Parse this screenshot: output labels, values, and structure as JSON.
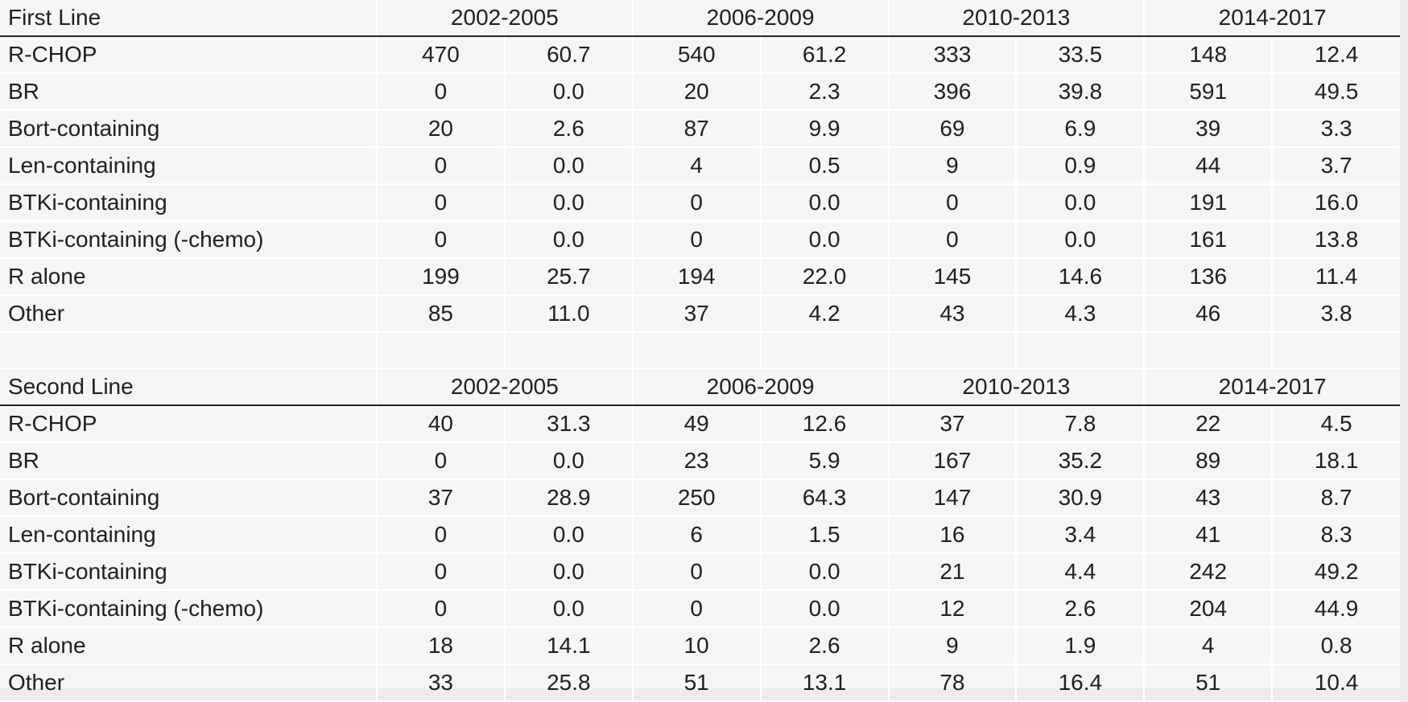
{
  "sections": [
    {
      "title": "First Line",
      "periods": [
        "2002-2005",
        "2006-2009",
        "2010-2013",
        "2014-2017"
      ],
      "rows": [
        {
          "label": "R-CHOP",
          "values": [
            "470",
            "60.7",
            "540",
            "61.2",
            "333",
            "33.5",
            "148",
            "12.4"
          ]
        },
        {
          "label": "BR",
          "values": [
            "0",
            "0.0",
            "20",
            "2.3",
            "396",
            "39.8",
            "591",
            "49.5"
          ]
        },
        {
          "label": "Bort-containing",
          "values": [
            "20",
            "2.6",
            "87",
            "9.9",
            "69",
            "6.9",
            "39",
            "3.3"
          ]
        },
        {
          "label": "Len-containing",
          "values": [
            "0",
            "0.0",
            "4",
            "0.5",
            "9",
            "0.9",
            "44",
            "3.7"
          ]
        },
        {
          "label": "BTKi-containing",
          "values": [
            "0",
            "0.0",
            "0",
            "0.0",
            "0",
            "0.0",
            "191",
            "16.0"
          ]
        },
        {
          "label": "BTKi-containing (-chemo)",
          "values": [
            "0",
            "0.0",
            "0",
            "0.0",
            "0",
            "0.0",
            "161",
            "13.8"
          ]
        },
        {
          "label": "R alone",
          "values": [
            "199",
            "25.7",
            "194",
            "22.0",
            "145",
            "14.6",
            "136",
            "11.4"
          ]
        },
        {
          "label": "Other",
          "values": [
            "85",
            "11.0",
            "37",
            "4.2",
            "43",
            "4.3",
            "46",
            "3.8"
          ]
        }
      ]
    },
    {
      "title": "Second Line",
      "periods": [
        "2002-2005",
        "2006-2009",
        "2010-2013",
        "2014-2017"
      ],
      "rows": [
        {
          "label": "R-CHOP",
          "values": [
            "40",
            "31.3",
            "49",
            "12.6",
            "37",
            "7.8",
            "22",
            "4.5"
          ]
        },
        {
          "label": "BR",
          "values": [
            "0",
            "0.0",
            "23",
            "5.9",
            "167",
            "35.2",
            "89",
            "18.1"
          ]
        },
        {
          "label": "Bort-containing",
          "values": [
            "37",
            "28.9",
            "250",
            "64.3",
            "147",
            "30.9",
            "43",
            "8.7"
          ]
        },
        {
          "label": "Len-containing",
          "values": [
            "0",
            "0.0",
            "6",
            "1.5",
            "16",
            "3.4",
            "41",
            "8.3"
          ]
        },
        {
          "label": "BTKi-containing",
          "values": [
            "0",
            "0.0",
            "0",
            "0.0",
            "21",
            "4.4",
            "242",
            "49.2"
          ]
        },
        {
          "label": "BTKi-containing (-chemo)",
          "values": [
            "0",
            "0.0",
            "0",
            "0.0",
            "12",
            "2.6",
            "204",
            "44.9"
          ]
        },
        {
          "label": "R alone",
          "values": [
            "18",
            "14.1",
            "10",
            "2.6",
            "9",
            "1.9",
            "4",
            "0.8"
          ]
        },
        {
          "label": "Other",
          "values": [
            "33",
            "25.8",
            "51",
            "13.1",
            "78",
            "16.4",
            "51",
            "10.4"
          ]
        }
      ]
    }
  ]
}
